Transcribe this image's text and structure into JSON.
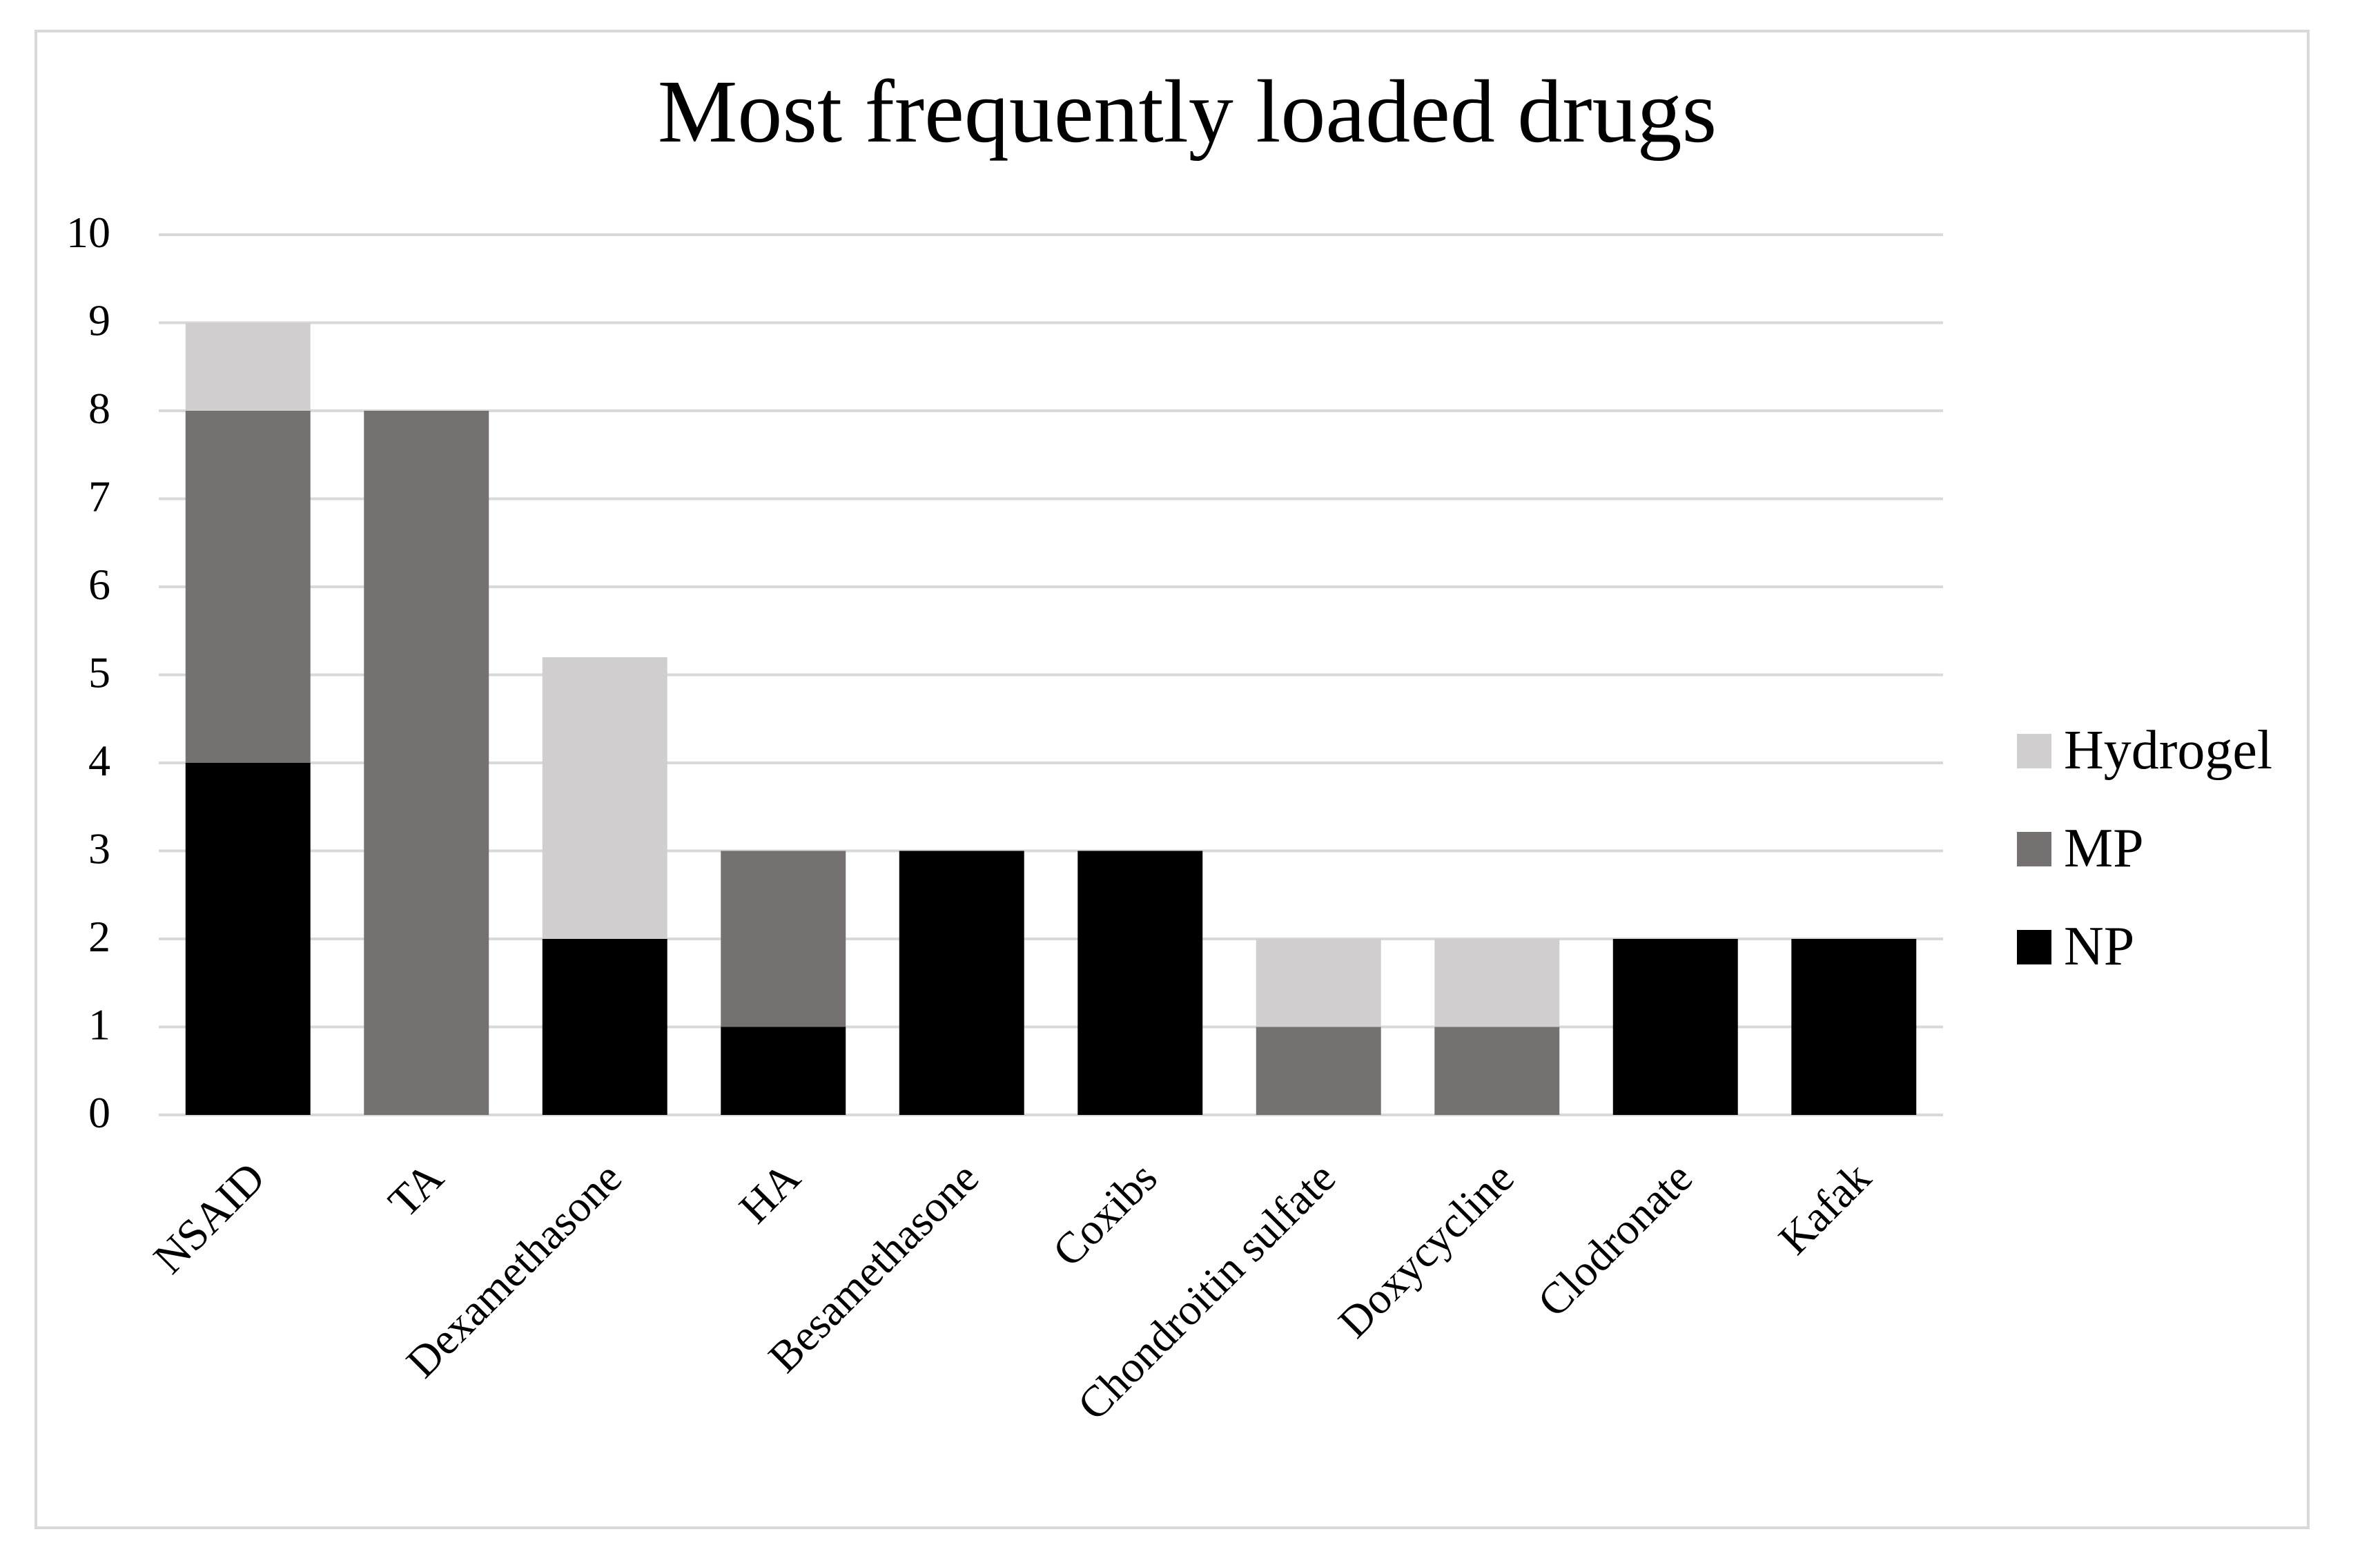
{
  "chart_data": {
    "type": "bar",
    "stacked": true,
    "title": "Most frequently loaded drugs",
    "xlabel": "",
    "ylabel": "",
    "ylim": [
      0,
      10
    ],
    "yticks": [
      "0",
      "1",
      "2",
      "3",
      "4",
      "5",
      "6",
      "7",
      "8",
      "9",
      "10"
    ],
    "grid": true,
    "legend_position": "right",
    "categories": [
      "NSAID",
      "TA",
      "Dexamethasone",
      "HA",
      "Besamethasone",
      "Coxibs",
      "Chondroitin sulfate",
      "Doxycycline",
      "Clodronate",
      "Kafak"
    ],
    "series": [
      {
        "name": "NP",
        "color": "#000000",
        "values": [
          4,
          0,
          2,
          1,
          3,
          3,
          0,
          0,
          2,
          2
        ]
      },
      {
        "name": "MP",
        "color": "#767171",
        "values": [
          4,
          8,
          0,
          2,
          0,
          0,
          1,
          1,
          0,
          0
        ]
      },
      {
        "name": "Hydrogel",
        "color": "#d0cece",
        "values": [
          1,
          0,
          3.2,
          0,
          0,
          0,
          1,
          1,
          0,
          0
        ]
      }
    ],
    "legend_order": [
      "Hydrogel",
      "MP",
      "NP"
    ]
  }
}
